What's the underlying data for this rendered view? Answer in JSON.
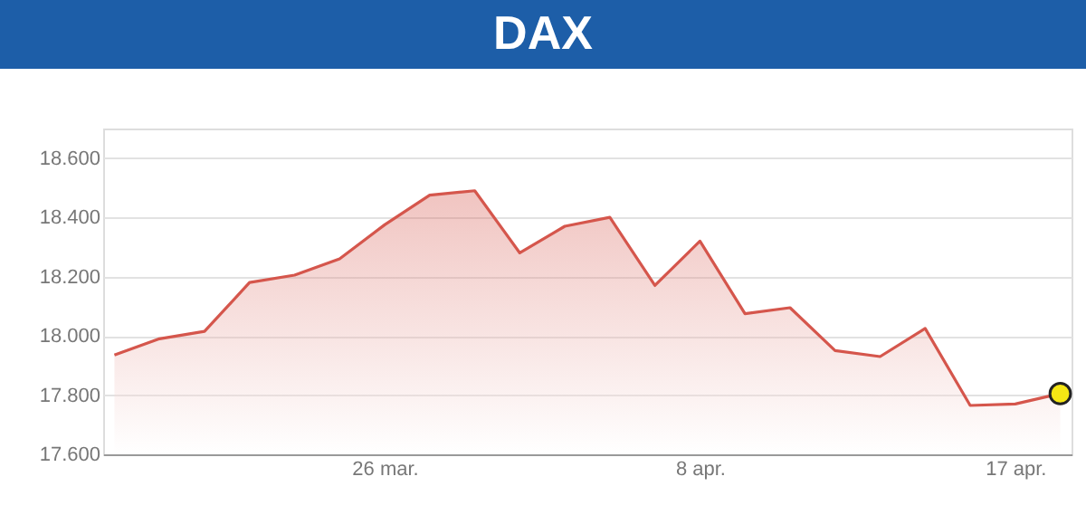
{
  "chart_data": {
    "type": "area",
    "title": "DAX",
    "categories": [
      null,
      null,
      null,
      null,
      null,
      null,
      "26 mar.",
      null,
      null,
      null,
      null,
      null,
      null,
      "8 apr.",
      null,
      null,
      null,
      null,
      null,
      null,
      "17 apr.",
      null
    ],
    "series": [
      {
        "color": "#d5564c",
        "values": [
          17935,
          17990,
          18015,
          18180,
          18205,
          18260,
          18375,
          18475,
          18490,
          18280,
          18370,
          18400,
          18170,
          18320,
          18075,
          18095,
          17950,
          17930,
          18025,
          17765,
          17770,
          17805
        ]
      },
      {
        "type": "scatter",
        "color": "#f5e614",
        "values": [
          null,
          null,
          null,
          null,
          null,
          null,
          null,
          null,
          null,
          null,
          null,
          null,
          null,
          null,
          null,
          null,
          null,
          null,
          null,
          null,
          null,
          17805
        ]
      }
    ],
    "ylim": [
      17600,
      18700
    ],
    "yticks": [
      {
        "value": 17600,
        "label": "17.600"
      },
      {
        "value": 17800,
        "label": "17.800"
      },
      {
        "value": 18000,
        "label": "18.000"
      },
      {
        "value": 18200,
        "label": "18.200"
      },
      {
        "value": 18400,
        "label": "18.400"
      },
      {
        "value": 18600,
        "label": "18.600"
      }
    ],
    "grid": "y"
  }
}
